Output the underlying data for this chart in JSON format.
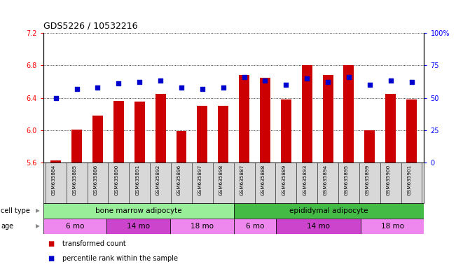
{
  "title": "GDS5226 / 10532216",
  "samples": [
    "GSM635884",
    "GSM635885",
    "GSM635886",
    "GSM635890",
    "GSM635891",
    "GSM635892",
    "GSM635896",
    "GSM635897",
    "GSM635898",
    "GSM635887",
    "GSM635888",
    "GSM635889",
    "GSM635893",
    "GSM635894",
    "GSM635895",
    "GSM635899",
    "GSM635900",
    "GSM635901"
  ],
  "bar_values": [
    5.63,
    6.01,
    6.18,
    6.36,
    6.35,
    6.45,
    5.99,
    6.3,
    6.3,
    6.68,
    6.65,
    6.38,
    6.8,
    6.68,
    6.8,
    6.0,
    6.45,
    6.38
  ],
  "percentile_values": [
    50,
    57,
    58,
    61,
    62,
    63,
    58,
    57,
    58,
    66,
    63,
    60,
    65,
    62,
    66,
    60,
    63,
    62
  ],
  "ylim_left": [
    5.6,
    7.2
  ],
  "ylim_right": [
    0,
    100
  ],
  "yticks_left": [
    5.6,
    6.0,
    6.4,
    6.8,
    7.2
  ],
  "yticks_right": [
    0,
    25,
    50,
    75,
    100
  ],
  "bar_color": "#cc0000",
  "percentile_color": "#0000cc",
  "cell_type_groups": [
    {
      "label": "bone marrow adipocyte",
      "start": 0,
      "end": 9,
      "color": "#99ee99"
    },
    {
      "label": "epididymal adipocyte",
      "start": 9,
      "end": 18,
      "color": "#44bb44"
    }
  ],
  "age_groups": [
    {
      "label": "6 mo",
      "start": 0,
      "end": 3,
      "color": "#ee88ee"
    },
    {
      "label": "14 mo",
      "start": 3,
      "end": 6,
      "color": "#cc44cc"
    },
    {
      "label": "18 mo",
      "start": 6,
      "end": 9,
      "color": "#ee88ee"
    },
    {
      "label": "6 mo",
      "start": 9,
      "end": 11,
      "color": "#ee88ee"
    },
    {
      "label": "14 mo",
      "start": 11,
      "end": 15,
      "color": "#cc44cc"
    },
    {
      "label": "18 mo",
      "start": 15,
      "end": 18,
      "color": "#ee88ee"
    }
  ],
  "cell_type_label": "cell type",
  "age_label": "age",
  "legend_red_label": "transformed count",
  "legend_blue_label": "percentile rank within the sample",
  "sample_bg_color": "#d8d8d8",
  "right_tick_100_label": "100%"
}
